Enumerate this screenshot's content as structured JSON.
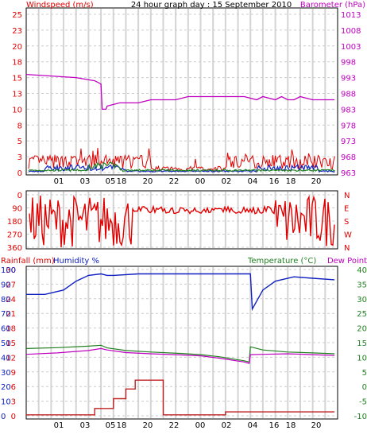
{
  "chart_data": [
    {
      "id": "wind_baro",
      "type": "line",
      "title": "24 hour graph day : 15 September 2010",
      "left_axis_label": "Windspeed (m/s)",
      "right_axis_label": "Barometer (hPa)",
      "left_ticks": [
        "0",
        "3",
        "5",
        "8",
        "10",
        "13",
        "15",
        "18",
        "20",
        "23",
        "25"
      ],
      "right_ticks": [
        "963",
        "968",
        "973",
        "978",
        "983",
        "988",
        "993",
        "998",
        "1003",
        "1008",
        "1013"
      ],
      "x_tick_labels": [
        "01",
        "03",
        "05",
        "18",
        "20",
        "22",
        "00",
        "02",
        "04",
        "16",
        "18",
        "20"
      ],
      "ylim_left": [
        0,
        25
      ],
      "ylim_right": [
        963,
        1013
      ],
      "colors": {
        "windspeed": "#e00000",
        "gust": "#1020c0",
        "avg": "#208020",
        "barometer": "#c000c0"
      },
      "series": [
        {
          "name": "Barometer",
          "axis": "right",
          "x": [
            0,
            8,
            11,
            12,
            12.2,
            12.8,
            13,
            15,
            18,
            20,
            22,
            24,
            26,
            29,
            32,
            35,
            37,
            38,
            40,
            41,
            42,
            43,
            44,
            46,
            48,
            49.5
          ],
          "y": [
            994,
            993,
            992,
            991,
            983,
            983,
            984,
            985,
            985,
            986,
            986,
            986,
            987,
            987,
            987,
            987,
            986,
            987,
            986,
            987,
            986,
            986,
            987,
            986,
            986,
            986
          ]
        }
      ]
    },
    {
      "id": "wind_direction",
      "type": "line",
      "left_ticks": [
        "360",
        "270",
        "180",
        "90",
        "0"
      ],
      "right_ticks": [
        "N",
        "W",
        "S",
        "E",
        "N"
      ],
      "ylim": [
        0,
        360
      ],
      "color": "#e00000"
    },
    {
      "id": "rain_hum_temp",
      "type": "line",
      "left_axis_label": "Rainfall (mm)",
      "humidity_label": "Humidity %",
      "right_axis_label_temp": "Temperature (°C)",
      "right_axis_label_dew": "Dew Point",
      "rain_ticks": [
        "0",
        "3",
        "6",
        "9",
        "12",
        "15",
        "18",
        "21",
        "24",
        "27",
        "30"
      ],
      "humidity_ticks": [
        "0",
        "10",
        "20",
        "30",
        "40",
        "50",
        "60",
        "70",
        "80",
        "90",
        "100"
      ],
      "temp_ticks": [
        "-10",
        "-5",
        "0",
        "5",
        "10",
        "15",
        "20",
        "25",
        "30",
        "35",
        "40"
      ],
      "x_tick_labels": [
        "01",
        "03",
        "05",
        "18",
        "20",
        "22",
        "00",
        "02",
        "04",
        "16",
        "18",
        "20"
      ],
      "colors": {
        "rainfall": "#c02020",
        "humidity": "#1020c0",
        "temperature": "#208020",
        "dew_point": "#c000c0"
      },
      "series": [
        {
          "name": "Humidity",
          "axis": "humidity",
          "x": [
            0,
            3,
            6,
            8,
            10,
            12,
            13,
            14,
            18,
            22,
            25,
            30,
            34,
            35,
            36,
            36.3,
            38,
            40,
            43,
            46,
            49.5
          ],
          "y": [
            83,
            83,
            86,
            92,
            96,
            97,
            96,
            96,
            97,
            97,
            97,
            97,
            97,
            97,
            97,
            73,
            86,
            92,
            95,
            94,
            93
          ]
        },
        {
          "name": "Temperature",
          "axis": "temp",
          "x": [
            0,
            5,
            10,
            12,
            13,
            16,
            20,
            25,
            28,
            31,
            35,
            35.8,
            36,
            38,
            42,
            46,
            49.5
          ],
          "y": [
            13,
            13.3,
            13.8,
            14.1,
            13.2,
            12.3,
            11.8,
            11.3,
            10.9,
            10.2,
            8.8,
            8.4,
            13.6,
            12.5,
            11.8,
            11.5,
            11.2
          ]
        },
        {
          "name": "Dew Point",
          "axis": "temp",
          "x": [
            0,
            5,
            10,
            12,
            13,
            16,
            20,
            25,
            28,
            31,
            35,
            35.8,
            36,
            38,
            42,
            46,
            49.5
          ],
          "y": [
            11,
            11.5,
            12.3,
            13.0,
            12.5,
            11.6,
            11.2,
            10.8,
            10.5,
            9.7,
            8.4,
            7.9,
            10.9,
            11.0,
            11.2,
            10.9,
            10.6
          ]
        },
        {
          "name": "Rainfall",
          "axis": "rain",
          "x": [
            0,
            11,
            11,
            14,
            14,
            16,
            16,
            17.5,
            17.5,
            22,
            22,
            32,
            32,
            49.5
          ],
          "y": [
            0.2,
            0.2,
            1.5,
            1.5,
            3.5,
            3.5,
            5.5,
            5.5,
            7.3,
            7.3,
            0.2,
            0.2,
            0.8,
            0.8
          ]
        }
      ]
    }
  ]
}
